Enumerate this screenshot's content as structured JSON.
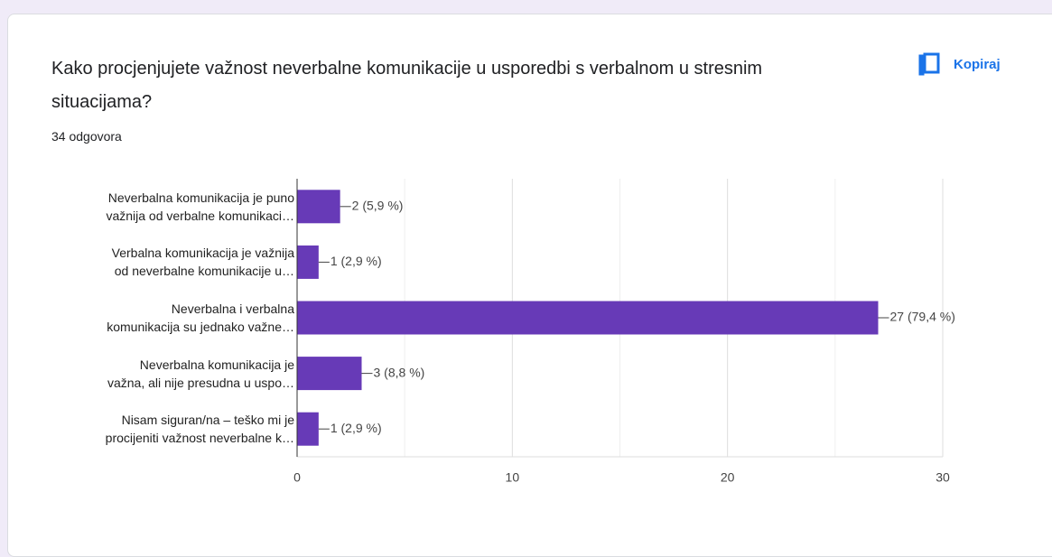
{
  "header": {
    "title": "Kako procjenjujete važnost neverbalne komunikacije u usporedbi s verbalnom u stresnim situacijama?",
    "responses": "34 odgovora",
    "copy_button": "Kopiraj"
  },
  "chart_data": {
    "type": "bar",
    "orientation": "horizontal",
    "categories": [
      "Neverbalna komunikacija je puno\nvažnija od verbalne komunikaci…",
      "Verbalna komunikacija je važnija\nod neverbalne komunikacije u…",
      "Neverbalna i verbalna\nkomunikacija su jednako važne…",
      "Neverbalna komunikacija je\nvažna, ali nije presudna u uspo…",
      "Nisam siguran/na – teško mi je\nprocijeniti važnost neverbalne k…"
    ],
    "values": [
      2,
      1,
      27,
      3,
      1
    ],
    "value_labels": [
      "2 (5,9 %)",
      "1 (2,9 %)",
      "27 (79,4 %)",
      "3 (8,8 %)",
      "1 (2,9 %)"
    ],
    "color": "#673ab7",
    "xlim": [
      0,
      30
    ],
    "xticks": [
      0,
      10,
      20,
      30
    ],
    "minor_xticks": [
      5,
      15,
      25
    ],
    "grid": true
  }
}
